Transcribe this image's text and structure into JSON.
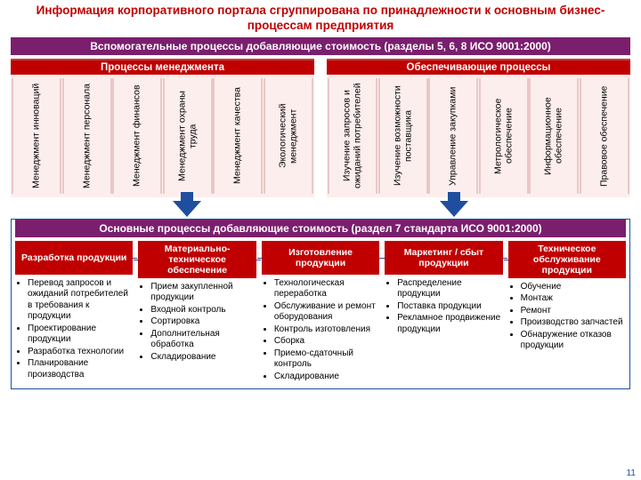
{
  "title": "Информация корпоративного портала сгруппирована по принадлежности к основным бизнес-процессам предприятия",
  "aux_band": "Вспомогательные процессы добавляющие стоимость (разделы 5, 6, 8 ИСО 9001:2000)",
  "mgmt": {
    "title": "Процессы менеджмента",
    "items": [
      "Менеджмент инноваций",
      "Менеджмент персонала",
      "Менеджмент финансов",
      "Менеджмент охраны труда",
      "Менеджмент качества",
      "Экологический менеджмент"
    ]
  },
  "support": {
    "title": "Обеспечивающие процессы",
    "items": [
      "Изучение запросов и ожиданий потребителей",
      "Изучение возможности поставщика",
      "Управление закупками",
      "Метрологическое обеспечение",
      "Информационное обеспечение",
      "Правовое обеспечение"
    ]
  },
  "main_band": "Основные процессы добавляющие стоимость (раздел 7 стандарта ИСО 9001:2000)",
  "cols": [
    {
      "head": "Разработка продукции",
      "items": [
        "Перевод запросов и ожиданий потребителей в требования к продукции",
        "Проектирование продукции",
        "Разработка технологии",
        "Планирование производства"
      ]
    },
    {
      "head": "Материально-техническое обеспечение",
      "items": [
        "Прием закупленной продукции",
        "Входной контроль",
        "Сортировка",
        "Дополнительная обработка",
        "Складирование"
      ]
    },
    {
      "head": "Изготовление продукции",
      "items": [
        "Технологическая переработка",
        "Обслуживание и ремонт оборудования",
        "Контроль изготовления",
        "Сборка",
        "Приемо-сдаточный контроль",
        "Складирование"
      ]
    },
    {
      "head": "Маркетинг / сбыт продукции",
      "items": [
        "Распределение продукции",
        "Поставка продукции",
        "Рекламное продвижение продукции"
      ]
    },
    {
      "head": "Техническое обслуживание продукции",
      "items": [
        "Обучение",
        "Монтаж",
        "Ремонт",
        "Производство запчастей",
        "Обнаружение отказов продукции"
      ]
    }
  ],
  "page_number": "11",
  "colors": {
    "title": "#c00000",
    "band_bg": "#7a1f6e",
    "red_bg": "#c00000",
    "pink_bg": "#fdeeee",
    "arrow": "#1f4ea0",
    "border": "#1f4ea0"
  }
}
